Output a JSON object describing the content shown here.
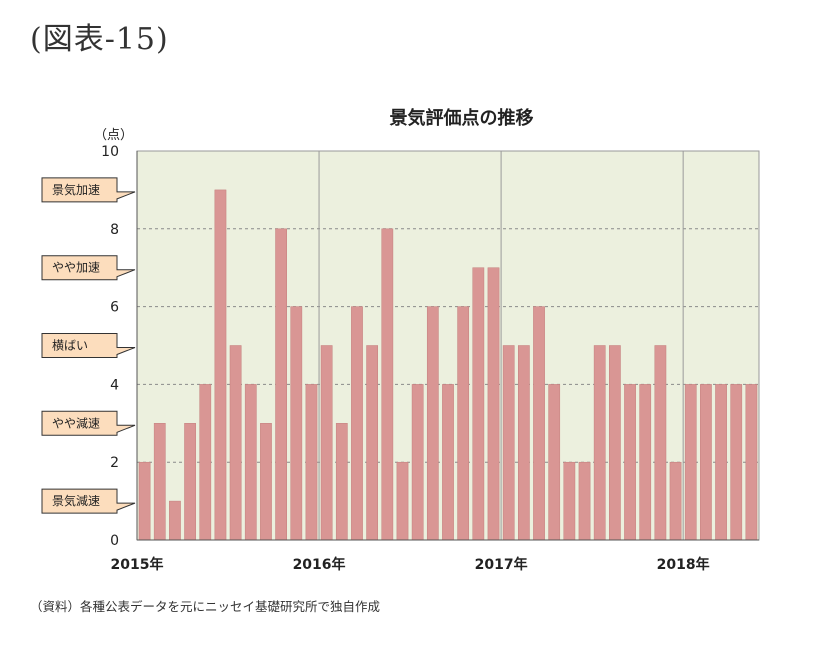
{
  "figure_label": "(図表-15)",
  "source_note": "（資料）各種公表データを元にニッセイ基礎研究所で独自作成",
  "colors": {
    "plot_bg": "#ECF0DE",
    "bar": "#D99694",
    "bar_stroke": "#C47F7D",
    "callout_bg": "#FCDDBD",
    "callout_border": "#333333"
  },
  "chart_data": {
    "type": "bar",
    "title": "景気評価点の推移",
    "ylabel": "（点）",
    "ylim": [
      0,
      10
    ],
    "yticks": [
      0,
      2,
      4,
      6,
      8,
      10
    ],
    "grid": "horizontal dashed at 2,4,6,8; vertical at year boundaries",
    "x_year_labels": [
      "2015年",
      "2016年",
      "2017年",
      "2018年"
    ],
    "values": [
      2,
      3,
      1,
      3,
      4,
      9,
      5,
      4,
      3,
      8,
      6,
      4,
      5,
      3,
      6,
      5,
      8,
      2,
      4,
      6,
      4,
      6,
      7,
      7,
      5,
      5,
      6,
      4,
      2,
      2,
      5,
      5,
      4,
      4,
      5,
      2,
      4,
      4,
      4,
      4,
      4
    ],
    "callouts": [
      {
        "label": "景気加速",
        "y": 9
      },
      {
        "label": "やや加速",
        "y": 7
      },
      {
        "label": "横ばい",
        "y": 5
      },
      {
        "label": "やや減速",
        "y": 3
      },
      {
        "label": "景気減速",
        "y": 1
      }
    ]
  }
}
